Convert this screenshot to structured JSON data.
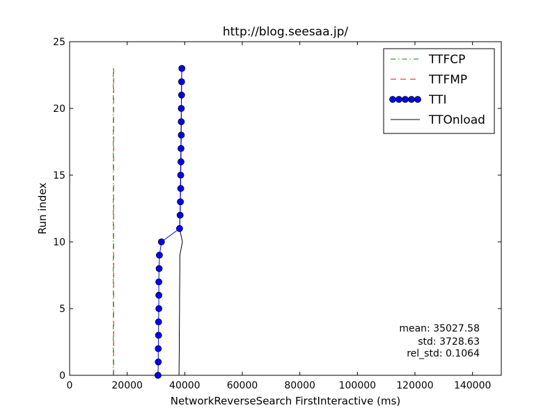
{
  "chart_data": {
    "type": "line",
    "title": "http://blog.seesaa.jp/",
    "xlabel": "NetworkReverseSearch FirstInteractive (ms)",
    "ylabel": "Run index",
    "xlim": [
      0,
      150000
    ],
    "ylim": [
      0,
      25
    ],
    "xticks": [
      0,
      20000,
      40000,
      60000,
      80000,
      100000,
      120000,
      140000
    ],
    "yticks": [
      0,
      5,
      10,
      15,
      20,
      25
    ],
    "grid": false,
    "legend_position": "top-right",
    "series": [
      {
        "name": "TTFCP",
        "style": "dash-dot",
        "color": "#008000",
        "y": [
          0,
          1,
          2,
          3,
          4,
          5,
          6,
          7,
          8,
          9,
          10,
          11,
          12,
          13,
          14,
          15,
          16,
          17,
          18,
          19,
          20,
          21,
          22,
          23
        ],
        "x": [
          15200,
          15200,
          15200,
          15200,
          15200,
          15200,
          15200,
          15200,
          15200,
          15200,
          15200,
          15200,
          15200,
          15200,
          15200,
          15200,
          15200,
          15200,
          15200,
          15200,
          15200,
          15200,
          15200,
          15200
        ]
      },
      {
        "name": "TTFMP",
        "style": "dashed",
        "color": "#ff0000",
        "y": [
          0,
          1,
          2,
          3,
          4,
          5,
          6,
          7,
          8,
          9,
          10,
          11,
          12,
          13,
          14,
          15,
          16,
          17,
          18,
          19,
          20,
          21,
          22,
          23
        ],
        "x": [
          15300,
          15300,
          15300,
          15300,
          15300,
          15300,
          15300,
          15300,
          15300,
          15300,
          15300,
          15300,
          15300,
          15300,
          15300,
          15300,
          15300,
          15300,
          15300,
          15300,
          15300,
          15300,
          15300,
          15300
        ]
      },
      {
        "name": "TTI",
        "style": "line-markers",
        "color": "#0000ff",
        "y": [
          0,
          1,
          2,
          3,
          4,
          5,
          6,
          7,
          8,
          9,
          10,
          11,
          12,
          13,
          14,
          15,
          16,
          17,
          18,
          19,
          20,
          21,
          22,
          23
        ],
        "x": [
          30700,
          30800,
          30800,
          30900,
          30900,
          31000,
          31000,
          31000,
          31100,
          31200,
          31900,
          38200,
          38400,
          38500,
          38600,
          38600,
          38700,
          38700,
          38800,
          38800,
          38800,
          38900,
          38900,
          39000
        ]
      },
      {
        "name": "TTOnload",
        "style": "solid",
        "color": "#000000",
        "y": [
          0,
          1,
          2,
          3,
          4,
          5,
          6,
          7,
          8,
          9,
          10,
          11,
          12,
          13,
          14,
          15,
          16,
          17,
          18,
          19,
          20,
          21,
          22,
          23
        ],
        "x": [
          38000,
          38050,
          38100,
          38100,
          38150,
          38200,
          38200,
          38250,
          38300,
          38300,
          39200,
          38200,
          38350,
          38450,
          38500,
          38550,
          38600,
          38650,
          38700,
          38750,
          38800,
          38850,
          38900,
          38950
        ]
      }
    ],
    "annotations": {
      "mean": "mean: 35027.58",
      "std": "std: 3728.63",
      "rel_std": "rel_std: 0.1064"
    }
  }
}
